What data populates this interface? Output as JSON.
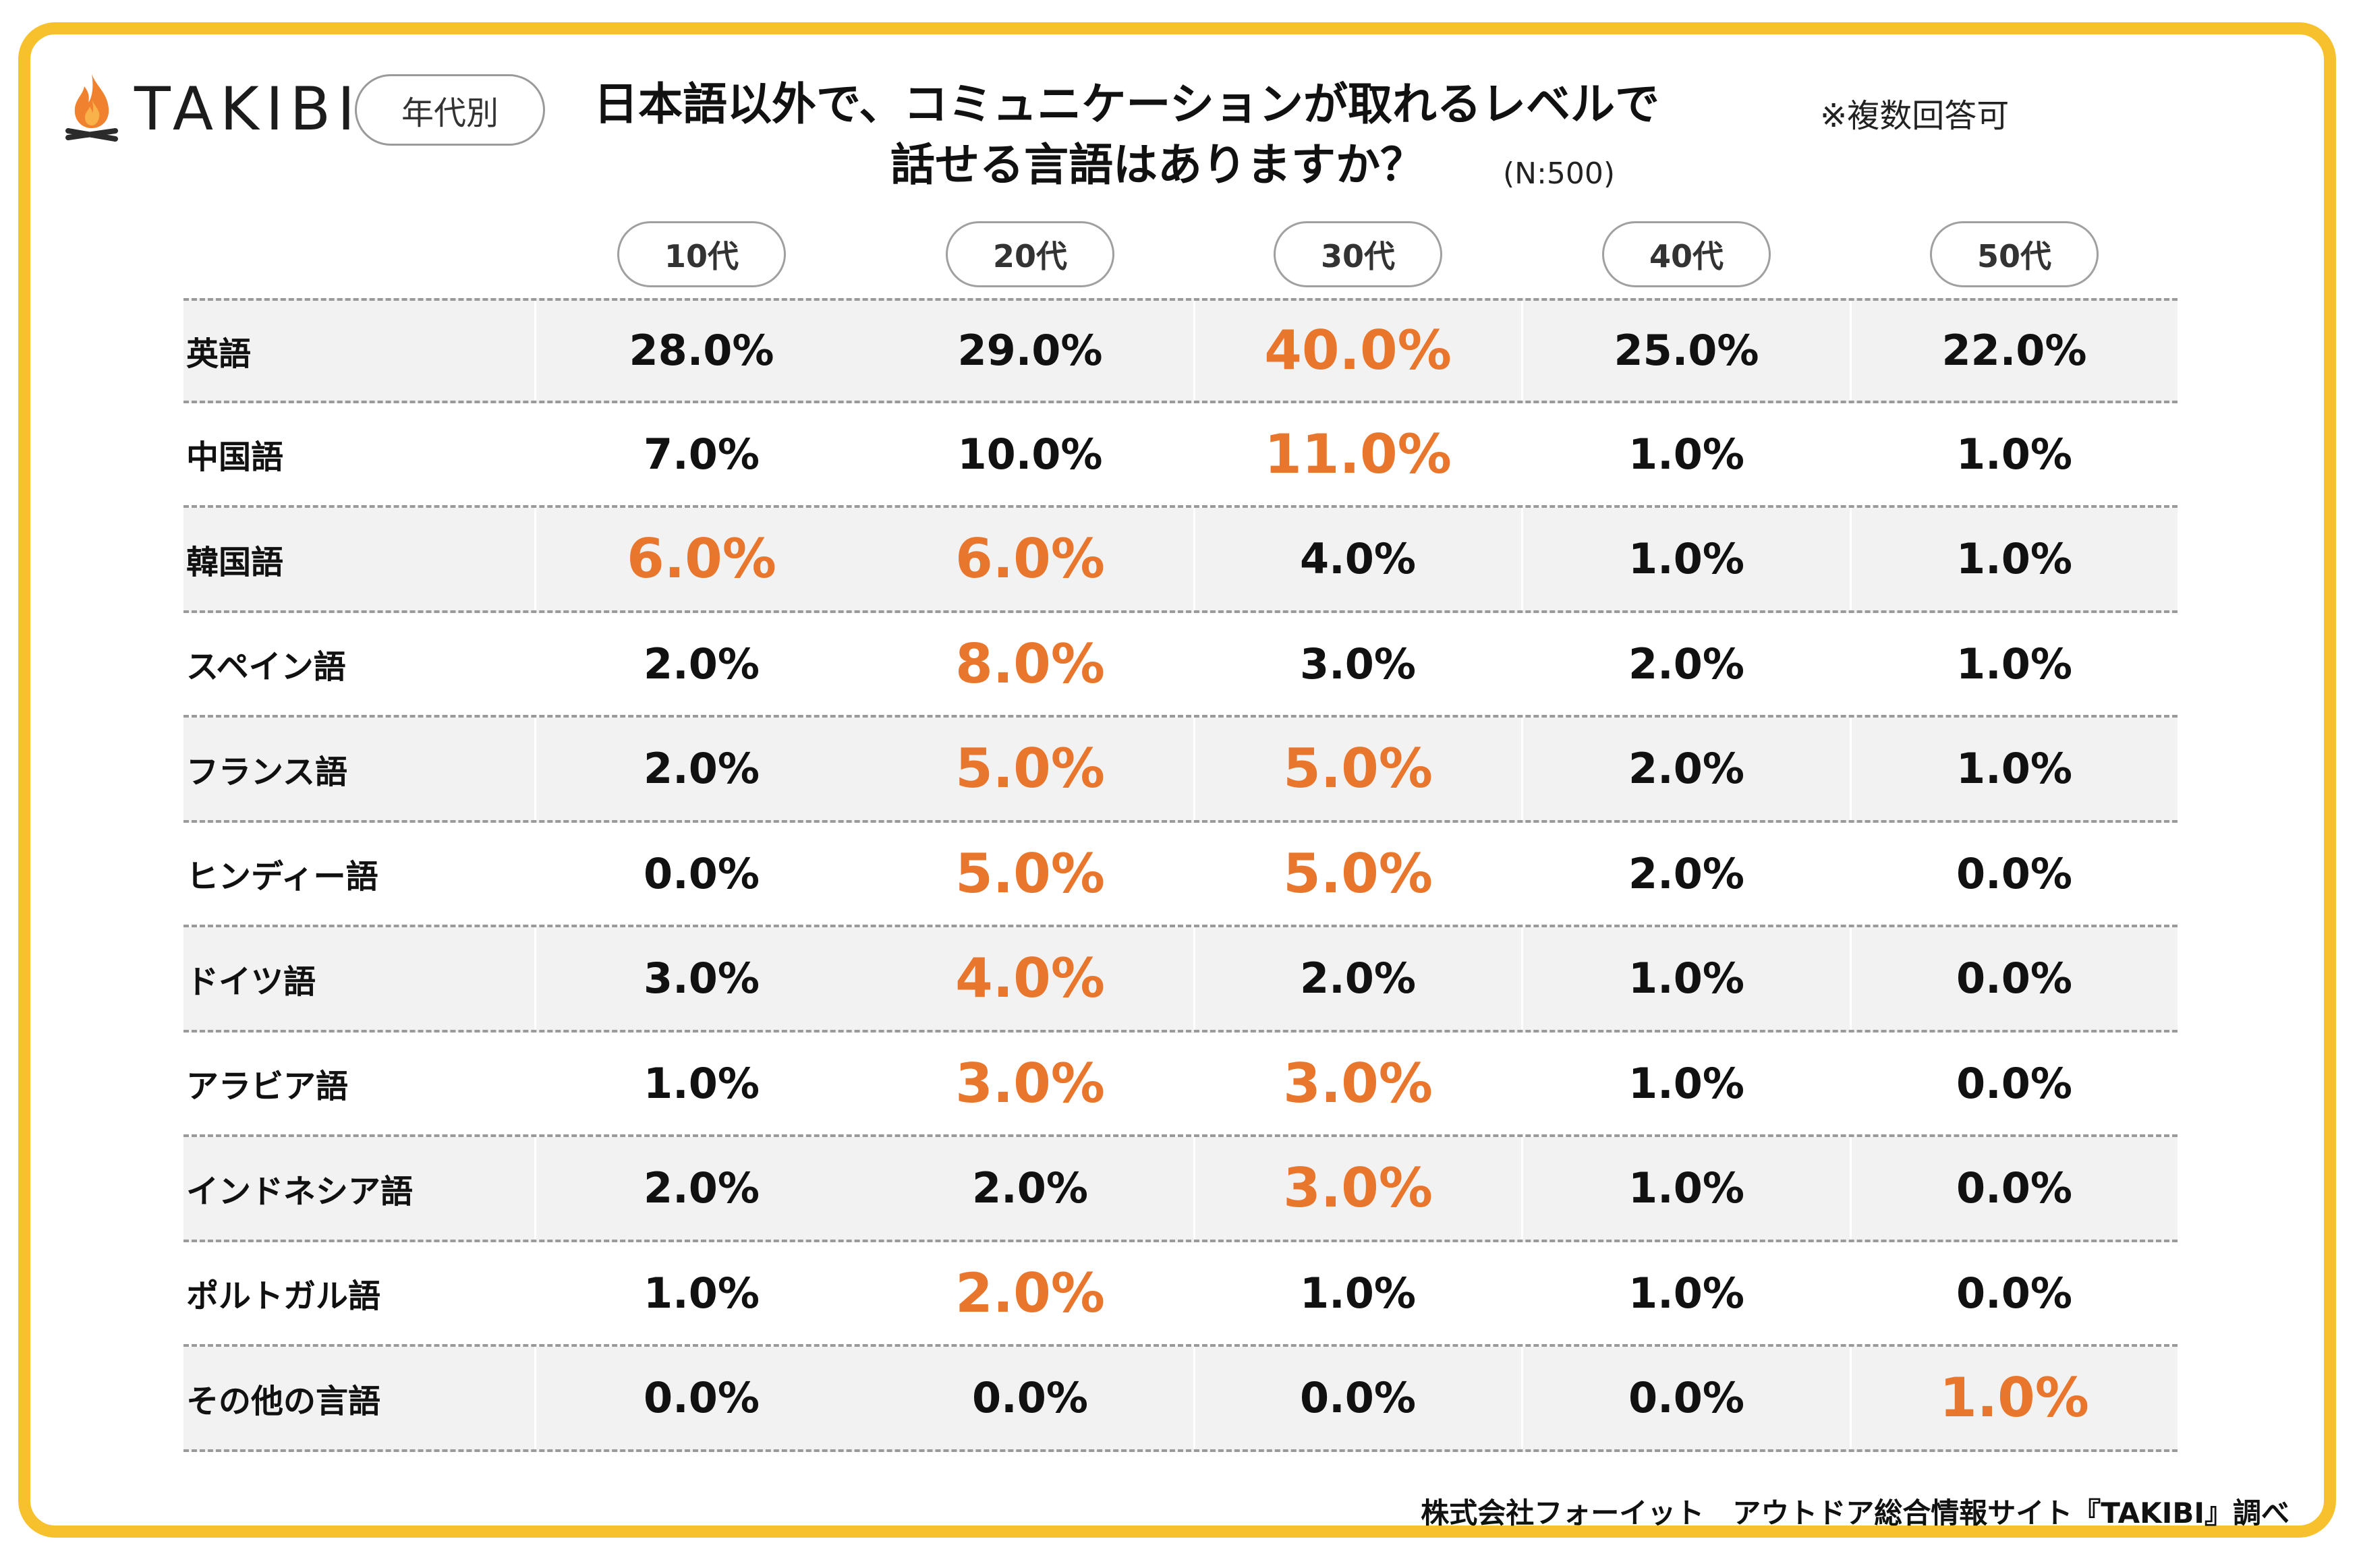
{
  "brand": {
    "name": "TAKIBI"
  },
  "badge": "年代別",
  "title": {
    "line1": "日本語以外で、コミュニケーションが取れるレベルで",
    "line2": "話せる言語はありますか？",
    "sample_size": "(N:500)",
    "note": "※複数回答可"
  },
  "colors": {
    "highlight": "#e8762c",
    "frame": "#f7c12e",
    "row_shade": "#f2f2f2"
  },
  "chart_data": {
    "type": "table",
    "columns": [
      "10代",
      "20代",
      "30代",
      "40代",
      "50代"
    ],
    "rows": [
      {
        "label": "英語",
        "values": [
          "28.0%",
          "29.0%",
          "40.0%",
          "25.0%",
          "22.0%"
        ],
        "highlight": [
          false,
          false,
          true,
          false,
          false
        ]
      },
      {
        "label": "中国語",
        "values": [
          "7.0%",
          "10.0%",
          "11.0%",
          "1.0%",
          "1.0%"
        ],
        "highlight": [
          false,
          false,
          true,
          false,
          false
        ]
      },
      {
        "label": "韓国語",
        "values": [
          "6.0%",
          "6.0%",
          "4.0%",
          "1.0%",
          "1.0%"
        ],
        "highlight": [
          true,
          true,
          false,
          false,
          false
        ]
      },
      {
        "label": "スペイン語",
        "values": [
          "2.0%",
          "8.0%",
          "3.0%",
          "2.0%",
          "1.0%"
        ],
        "highlight": [
          false,
          true,
          false,
          false,
          false
        ]
      },
      {
        "label": "フランス語",
        "values": [
          "2.0%",
          "5.0%",
          "5.0%",
          "2.0%",
          "1.0%"
        ],
        "highlight": [
          false,
          true,
          true,
          false,
          false
        ]
      },
      {
        "label": "ヒンディー語",
        "values": [
          "0.0%",
          "5.0%",
          "5.0%",
          "2.0%",
          "0.0%"
        ],
        "highlight": [
          false,
          true,
          true,
          false,
          false
        ]
      },
      {
        "label": "ドイツ語",
        "values": [
          "3.0%",
          "4.0%",
          "2.0%",
          "1.0%",
          "0.0%"
        ],
        "highlight": [
          false,
          true,
          false,
          false,
          false
        ]
      },
      {
        "label": "アラビア語",
        "values": [
          "1.0%",
          "3.0%",
          "3.0%",
          "1.0%",
          "0.0%"
        ],
        "highlight": [
          false,
          true,
          true,
          false,
          false
        ]
      },
      {
        "label": "インドネシア語",
        "values": [
          "2.0%",
          "2.0%",
          "3.0%",
          "1.0%",
          "0.0%"
        ],
        "highlight": [
          false,
          false,
          true,
          false,
          false
        ]
      },
      {
        "label": "ポルトガル語",
        "values": [
          "1.0%",
          "2.0%",
          "1.0%",
          "1.0%",
          "0.0%"
        ],
        "highlight": [
          false,
          true,
          false,
          false,
          false
        ]
      },
      {
        "label": "その他の言語",
        "values": [
          "0.0%",
          "0.0%",
          "0.0%",
          "0.0%",
          "1.0%"
        ],
        "highlight": [
          false,
          false,
          false,
          false,
          true
        ]
      }
    ]
  },
  "credit": "株式会社フォーイット　アウトドア総合情報サイト『TAKIBI』調べ"
}
